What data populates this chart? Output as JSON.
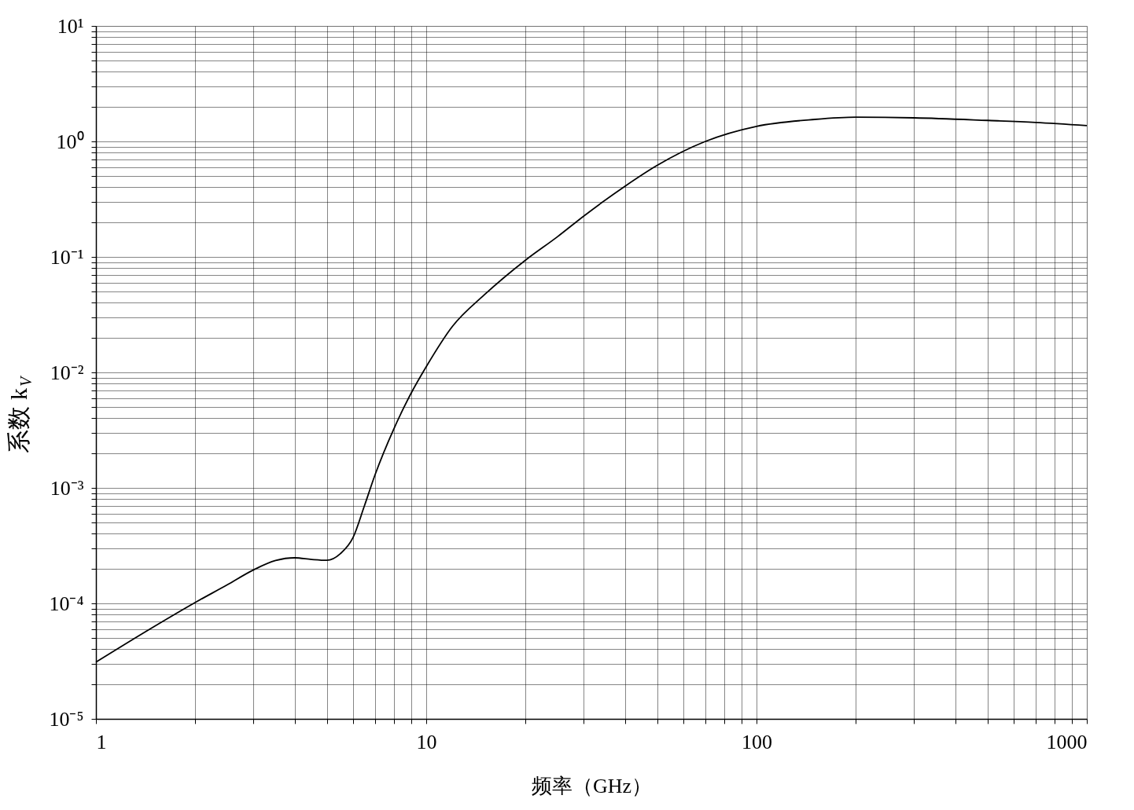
{
  "chart_data": {
    "type": "line",
    "xlabel": "频率（GHz）",
    "ylabel": "系数 k$_{V}$",
    "log": "xy",
    "grid": true,
    "xlim": [
      1,
      1000
    ],
    "ylim": [
      1e-05,
      10
    ],
    "xticks": [
      1,
      {
        "value": 2,
        "label": null
      },
      {
        "value": 3,
        "label": null
      },
      {
        "value": 4,
        "label": null
      },
      {
        "value": 5,
        "label": null
      },
      {
        "value": 6,
        "label": null
      },
      {
        "value": 7,
        "label": null
      },
      {
        "value": 8,
        "label": null
      },
      {
        "value": 9,
        "label": null
      },
      10,
      {
        "value": 20,
        "label": null
      },
      {
        "value": 30,
        "label": null
      },
      {
        "value": 40,
        "label": null
      },
      {
        "value": 50,
        "label": null
      },
      {
        "value": 60,
        "label": null
      },
      {
        "value": 70,
        "label": null
      },
      {
        "value": 80,
        "label": null
      },
      {
        "value": 90,
        "label": null
      },
      100,
      {
        "value": 200,
        "label": null
      },
      {
        "value": 300,
        "label": null
      },
      {
        "value": 400,
        "label": null
      },
      {
        "value": 500,
        "label": null
      },
      {
        "value": 600,
        "label": null
      },
      {
        "value": 700,
        "label": null
      },
      {
        "value": 800,
        "label": null
      },
      {
        "value": 900,
        "label": null
      },
      1000
    ],
    "yticks": [
      {
        "value": 1e-05,
        "label": "10⁻⁵"
      },
      {
        "value": 2e-05,
        "label": null
      },
      {
        "value": 3e-05,
        "label": null
      },
      {
        "value": 4e-05,
        "label": null
      },
      {
        "value": 5e-05,
        "label": null
      },
      {
        "value": 6e-05,
        "label": null
      },
      {
        "value": 7e-05,
        "label": null
      },
      {
        "value": 8e-05,
        "label": null
      },
      {
        "value": 9e-05,
        "label": null
      },
      {
        "value": 0.0001,
        "label": "10⁻⁴"
      },
      {
        "value": 0.0002,
        "label": null
      },
      {
        "value": 0.0003,
        "label": null
      },
      {
        "value": 0.0004,
        "label": null
      },
      {
        "value": 0.0005,
        "label": null
      },
      {
        "value": 0.0006,
        "label": null
      },
      {
        "value": 0.0007,
        "label": null
      },
      {
        "value": 0.0008,
        "label": null
      },
      {
        "value": 0.0009,
        "label": null
      },
      {
        "value": 0.001,
        "label": "10⁻³"
      },
      {
        "value": 0.002,
        "label": null
      },
      {
        "value": 0.003,
        "label": null
      },
      {
        "value": 0.004,
        "label": null
      },
      {
        "value": 0.005,
        "label": null
      },
      {
        "value": 0.006,
        "label": null
      },
      {
        "value": 0.007,
        "label": null
      },
      {
        "value": 0.008,
        "label": null
      },
      {
        "value": 0.009,
        "label": null
      },
      {
        "value": 0.01,
        "label": "10⁻²"
      },
      {
        "value": 0.02,
        "label": null
      },
      {
        "value": 0.03,
        "label": null
      },
      {
        "value": 0.04,
        "label": null
      },
      {
        "value": 0.05,
        "label": null
      },
      {
        "value": 0.06,
        "label": null
      },
      {
        "value": 0.07,
        "label": null
      },
      {
        "value": 0.08,
        "label": null
      },
      {
        "value": 0.09,
        "label": null
      },
      {
        "value": 0.1,
        "label": "10⁻¹"
      },
      {
        "value": 0.2,
        "label": null
      },
      {
        "value": 0.3,
        "label": null
      },
      {
        "value": 0.4,
        "label": null
      },
      {
        "value": 0.5,
        "label": null
      },
      {
        "value": 0.6,
        "label": null
      },
      {
        "value": 0.7,
        "label": null
      },
      {
        "value": 0.8,
        "label": null
      },
      {
        "value": 0.9,
        "label": null
      },
      {
        "value": 1,
        "label": "10⁰"
      },
      {
        "value": 2,
        "label": null
      },
      {
        "value": 3,
        "label": null
      },
      {
        "value": 4,
        "label": null
      },
      {
        "value": 5,
        "label": null
      },
      {
        "value": 6,
        "label": null
      },
      {
        "value": 7,
        "label": null
      },
      {
        "value": 8,
        "label": null
      },
      {
        "value": 9,
        "label": null
      },
      {
        "value": 10,
        "label": "10¹"
      }
    ],
    "series": [
      {
        "color": "#000000",
        "x": [
          1,
          1.5,
          2,
          2.5,
          3,
          3.5,
          4,
          4.5,
          5,
          5.5,
          6,
          6.5,
          7,
          8,
          9,
          10,
          12,
          15,
          20,
          25,
          30,
          40,
          50,
          70,
          100,
          150,
          200,
          300,
          500,
          700,
          1000
        ],
        "values": [
          3.1e-05,
          6.3e-05,
          0.000102,
          0.000145,
          0.000195,
          0.000235,
          0.000248,
          0.00024,
          0.000236,
          0.00027,
          0.00037,
          0.0007,
          0.0013,
          0.0033,
          0.0066,
          0.0112,
          0.025,
          0.047,
          0.094,
          0.15,
          0.226,
          0.41,
          0.62,
          1.0,
          1.35,
          1.55,
          1.62,
          1.6,
          1.52,
          1.46,
          1.37
        ]
      }
    ]
  }
}
